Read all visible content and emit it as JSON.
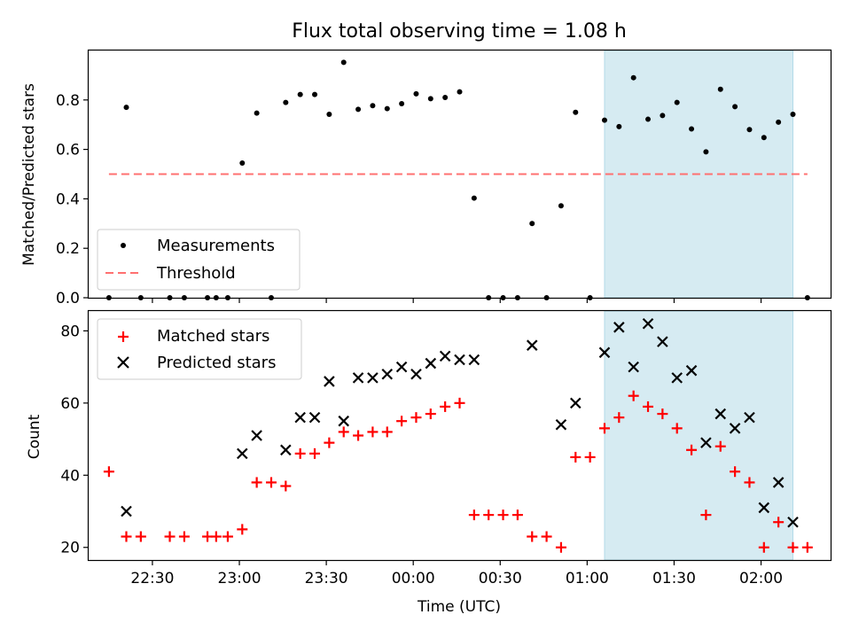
{
  "chart_data": [
    {
      "type": "scatter",
      "title": "Flux total observing time = 1.08 h",
      "ylabel": "Matched/Predicted stars",
      "xlabel": "",
      "ylim": [
        0,
        1.0
      ],
      "yticks": [
        0.0,
        0.2,
        0.4,
        0.6,
        0.8
      ],
      "ytick_labels": [
        "0.0",
        "0.2",
        "0.4",
        "0.6",
        "0.8"
      ],
      "xtick_labels_shown": false,
      "legend_position": "lower-left",
      "shaded_region": {
        "start": "01:06",
        "end": "02:11",
        "color": "#add8e6"
      },
      "series": [
        {
          "name": "Measurements",
          "marker": "dot",
          "color": "#000000",
          "points": [
            [
              "22:15",
              0.0
            ],
            [
              "22:21",
              0.77
            ],
            [
              "22:26",
              0.0
            ],
            [
              "22:36",
              0.0
            ],
            [
              "22:41",
              0.0
            ],
            [
              "22:49",
              0.0
            ],
            [
              "22:52",
              0.0
            ],
            [
              "22:56",
              0.0
            ],
            [
              "23:01",
              0.545
            ],
            [
              "23:06",
              0.747
            ],
            [
              "23:11",
              0.0
            ],
            [
              "23:16",
              0.79
            ],
            [
              "23:21",
              0.822
            ],
            [
              "23:26",
              0.822
            ],
            [
              "23:31",
              0.742
            ],
            [
              "23:36",
              0.952
            ],
            [
              "23:41",
              0.762
            ],
            [
              "23:46",
              0.777
            ],
            [
              "23:51",
              0.765
            ],
            [
              "23:56",
              0.785
            ],
            [
              "00:01",
              0.825
            ],
            [
              "00:06",
              0.805
            ],
            [
              "00:11",
              0.81
            ],
            [
              "00:16",
              0.833
            ],
            [
              "00:21",
              0.403
            ],
            [
              "00:26",
              0.0
            ],
            [
              "00:31",
              0.0
            ],
            [
              "00:36",
              0.0
            ],
            [
              "00:41",
              0.3
            ],
            [
              "00:46",
              0.0
            ],
            [
              "00:51",
              0.372
            ],
            [
              "00:56",
              0.75
            ],
            [
              "01:01",
              0.0
            ],
            [
              "01:06",
              0.718
            ],
            [
              "01:11",
              0.692
            ],
            [
              "01:16",
              0.89
            ],
            [
              "01:21",
              0.722
            ],
            [
              "01:26",
              0.737
            ],
            [
              "01:31",
              0.79
            ],
            [
              "01:36",
              0.683
            ],
            [
              "01:41",
              0.59
            ],
            [
              "01:46",
              0.843
            ],
            [
              "01:51",
              0.773
            ],
            [
              "01:56",
              0.68
            ],
            [
              "02:01",
              0.648
            ],
            [
              "02:06",
              0.71
            ],
            [
              "02:11",
              0.742
            ],
            [
              "02:16",
              0.0
            ]
          ]
        },
        {
          "name": "Threshold",
          "marker": "dashed-line",
          "color": "#ff7070",
          "points": [
            [
              "22:15",
              0.5
            ],
            [
              "02:16",
              0.5
            ]
          ]
        }
      ]
    },
    {
      "type": "scatter",
      "title": "",
      "ylabel": "Count",
      "xlabel": "Time (UTC)",
      "ylim": [
        16.5,
        85.5
      ],
      "yticks": [
        20,
        40,
        60,
        80
      ],
      "ytick_labels": [
        "20",
        "40",
        "60",
        "80"
      ],
      "xticks": [
        "22:30",
        "23:00",
        "23:30",
        "00:00",
        "00:30",
        "01:00",
        "01:30",
        "02:00"
      ],
      "xlim": [
        "22:08",
        "02:24"
      ],
      "legend_position": "upper-left",
      "shaded_region": {
        "start": "01:06",
        "end": "02:11",
        "color": "#add8e6"
      },
      "series": [
        {
          "name": "Matched stars",
          "marker": "plus",
          "color": "#ff0000",
          "points": [
            [
              "22:15",
              41
            ],
            [
              "22:21",
              23
            ],
            [
              "22:26",
              23
            ],
            [
              "22:36",
              23
            ],
            [
              "22:41",
              23
            ],
            [
              "22:49",
              23
            ],
            [
              "22:52",
              23
            ],
            [
              "22:56",
              23
            ],
            [
              "23:01",
              25
            ],
            [
              "23:06",
              38
            ],
            [
              "23:11",
              38
            ],
            [
              "23:16",
              37
            ],
            [
              "23:21",
              46
            ],
            [
              "23:26",
              46
            ],
            [
              "23:31",
              49
            ],
            [
              "23:36",
              52
            ],
            [
              "23:41",
              51
            ],
            [
              "23:46",
              52
            ],
            [
              "23:51",
              52
            ],
            [
              "23:56",
              55
            ],
            [
              "00:01",
              56
            ],
            [
              "00:06",
              57
            ],
            [
              "00:11",
              59
            ],
            [
              "00:16",
              60
            ],
            [
              "00:21",
              29
            ],
            [
              "00:26",
              29
            ],
            [
              "00:31",
              29
            ],
            [
              "00:36",
              29
            ],
            [
              "00:41",
              23
            ],
            [
              "00:46",
              23
            ],
            [
              "00:51",
              20
            ],
            [
              "00:56",
              45
            ],
            [
              "01:01",
              45
            ],
            [
              "01:06",
              53
            ],
            [
              "01:11",
              56
            ],
            [
              "01:16",
              62
            ],
            [
              "01:21",
              59
            ],
            [
              "01:26",
              57
            ],
            [
              "01:31",
              53
            ],
            [
              "01:36",
              47
            ],
            [
              "01:41",
              29
            ],
            [
              "01:46",
              48
            ],
            [
              "01:51",
              41
            ],
            [
              "01:56",
              38
            ],
            [
              "02:01",
              20
            ],
            [
              "02:06",
              27
            ],
            [
              "02:11",
              20
            ],
            [
              "02:16",
              20
            ]
          ]
        },
        {
          "name": "Predicted stars",
          "marker": "x",
          "color": "#000000",
          "points": [
            [
              "22:21",
              30
            ],
            [
              "23:01",
              46
            ],
            [
              "23:06",
              51
            ],
            [
              "23:16",
              47
            ],
            [
              "23:21",
              56
            ],
            [
              "23:26",
              56
            ],
            [
              "23:31",
              66
            ],
            [
              "23:36",
              55
            ],
            [
              "23:41",
              67
            ],
            [
              "23:46",
              67
            ],
            [
              "23:51",
              68
            ],
            [
              "23:56",
              70
            ],
            [
              "00:01",
              68
            ],
            [
              "00:06",
              71
            ],
            [
              "00:11",
              73
            ],
            [
              "00:16",
              72
            ],
            [
              "00:21",
              72
            ],
            [
              "00:41",
              76
            ],
            [
              "00:51",
              54
            ],
            [
              "00:56",
              60
            ],
            [
              "01:06",
              74
            ],
            [
              "01:11",
              81
            ],
            [
              "01:16",
              70
            ],
            [
              "01:21",
              82
            ],
            [
              "01:26",
              77
            ],
            [
              "01:31",
              67
            ],
            [
              "01:36",
              69
            ],
            [
              "01:41",
              49
            ],
            [
              "01:46",
              57
            ],
            [
              "01:51",
              53
            ],
            [
              "01:56",
              56
            ],
            [
              "02:01",
              31
            ],
            [
              "02:06",
              38
            ],
            [
              "02:11",
              27
            ]
          ]
        }
      ]
    }
  ]
}
